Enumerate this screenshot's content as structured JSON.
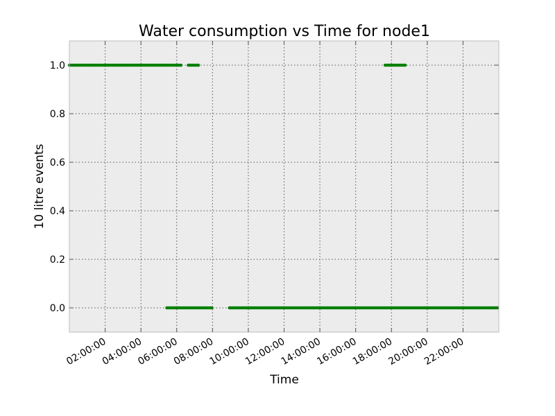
{
  "chart_data": {
    "type": "scatter",
    "title": "Water consumption vs Time for node1",
    "xlabel": "Time",
    "ylabel": "10 litre events",
    "x_ticks": [
      "02:00:00",
      "04:00:00",
      "06:00:00",
      "08:00:00",
      "10:00:00",
      "12:00:00",
      "14:00:00",
      "16:00:00",
      "18:00:00",
      "20:00:00",
      "22:00:00"
    ],
    "x_tick_hours": [
      2,
      4,
      6,
      8,
      10,
      12,
      14,
      16,
      18,
      20,
      22
    ],
    "xlim_hours": [
      0,
      24
    ],
    "y_ticks": [
      "0.0",
      "0.2",
      "0.4",
      "0.6",
      "0.8",
      "1.0"
    ],
    "y_tick_values": [
      0,
      0.2,
      0.4,
      0.6,
      0.8,
      1.0
    ],
    "ylim": [
      -0.1,
      1.1
    ],
    "grid": true,
    "colors": {
      "series": "#008000",
      "background": "#ececec",
      "grid": "#555555",
      "frame": "#bcbcbc"
    },
    "series": [
      {
        "segments": [
          {
            "y": 1,
            "x_start_hours": 0.0,
            "x_end_hours": 6.3
          },
          {
            "y": 1,
            "x_start_hours": 6.65,
            "x_end_hours": 7.25
          },
          {
            "y": 1,
            "x_start_hours": 17.65,
            "x_end_hours": 18.85
          },
          {
            "y": 0,
            "x_start_hours": 5.45,
            "x_end_hours": 8.05
          },
          {
            "y": 0,
            "x_start_hours": 8.95,
            "x_end_hours": 24.0
          }
        ]
      }
    ]
  }
}
